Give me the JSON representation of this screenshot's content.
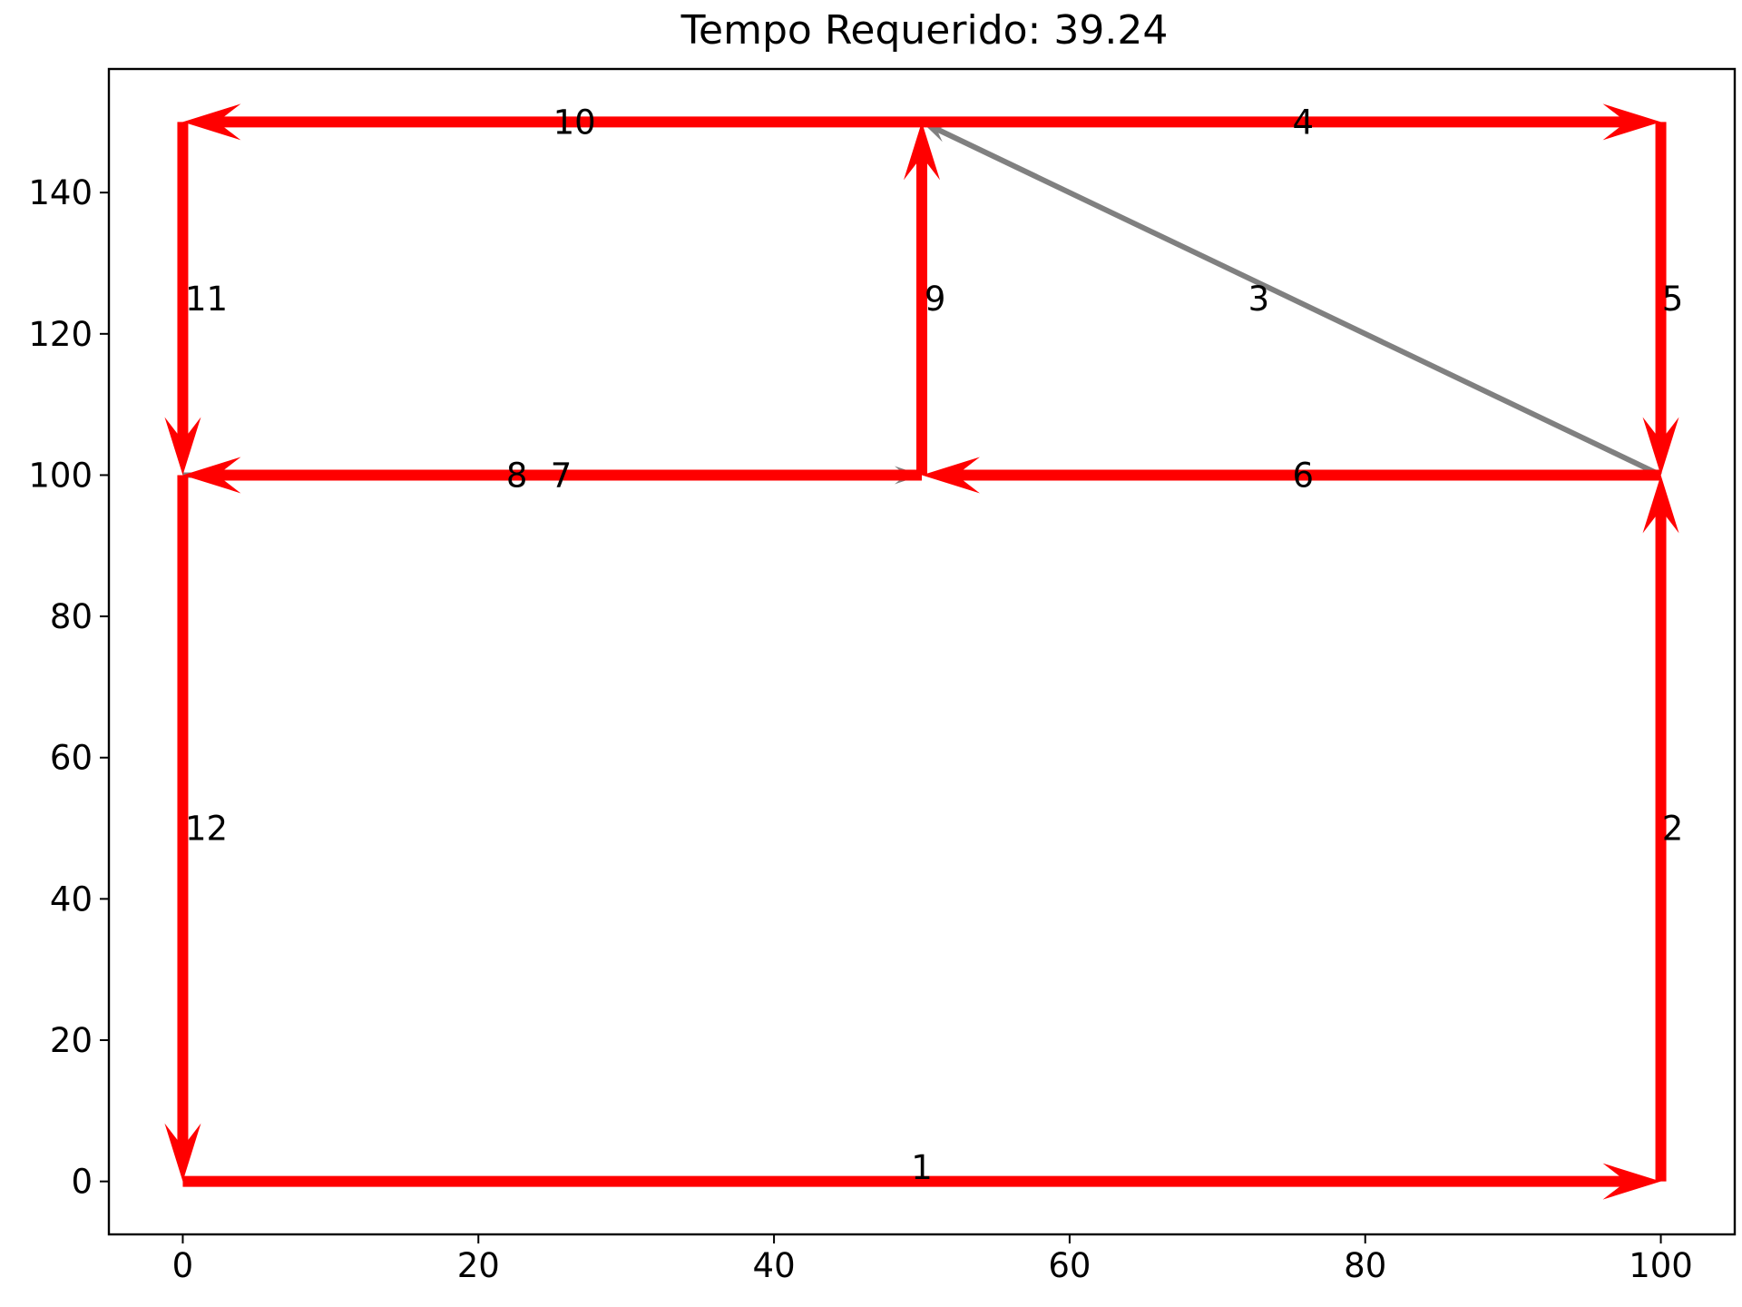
{
  "chart_data": {
    "type": "network",
    "title": "Tempo Requerido: 39.24",
    "xlabel": "",
    "ylabel": "",
    "xlim": [
      -5,
      105
    ],
    "ylim": [
      -7.5,
      157.5
    ],
    "xticks": [
      0,
      20,
      40,
      60,
      80,
      100
    ],
    "yticks": [
      0,
      20,
      40,
      60,
      80,
      100,
      120,
      140
    ],
    "colors": {
      "active": "#ff0000",
      "inactive": "#808080"
    },
    "edges": [
      {
        "label": "1",
        "from": [
          0,
          0
        ],
        "to": [
          100,
          0
        ],
        "status": "active",
        "label_at": [
          50,
          2
        ]
      },
      {
        "label": "2",
        "from": [
          100,
          0
        ],
        "to": [
          100,
          100
        ],
        "status": "active",
        "label_at": [
          100.8,
          50
        ]
      },
      {
        "label": "3",
        "from": [
          100,
          100
        ],
        "to": [
          50,
          150
        ],
        "status": "inactive",
        "label_at": [
          72.8,
          125
        ]
      },
      {
        "label": "4",
        "from": [
          50,
          150
        ],
        "to": [
          100,
          150
        ],
        "status": "active",
        "label_at": [
          75.8,
          150
        ]
      },
      {
        "label": "5",
        "from": [
          100,
          150
        ],
        "to": [
          100,
          100
        ],
        "status": "active",
        "label_at": [
          100.8,
          125
        ]
      },
      {
        "label": "6",
        "from": [
          100,
          100
        ],
        "to": [
          50,
          100
        ],
        "status": "active",
        "label_at": [
          75.8,
          100
        ]
      },
      {
        "label": "7",
        "from": [
          0,
          100
        ],
        "to": [
          50,
          100
        ],
        "status": "inactive",
        "label_at": [
          25.6,
          100
        ]
      },
      {
        "label": "8",
        "from": [
          50,
          100
        ],
        "to": [
          0,
          100
        ],
        "status": "active",
        "label_at": [
          22.6,
          100
        ]
      },
      {
        "label": "9",
        "from": [
          50,
          100
        ],
        "to": [
          50,
          150
        ],
        "status": "active",
        "label_at": [
          50.9,
          125
        ]
      },
      {
        "label": "10",
        "from": [
          50,
          150
        ],
        "to": [
          0,
          150
        ],
        "status": "active",
        "label_at": [
          26.5,
          150
        ]
      },
      {
        "label": "11",
        "from": [
          0,
          150
        ],
        "to": [
          0,
          100
        ],
        "status": "active",
        "label_at": [
          1.6,
          125
        ]
      },
      {
        "label": "12",
        "from": [
          0,
          100
        ],
        "to": [
          0,
          0
        ],
        "status": "active",
        "label_at": [
          1.6,
          50
        ]
      }
    ]
  }
}
